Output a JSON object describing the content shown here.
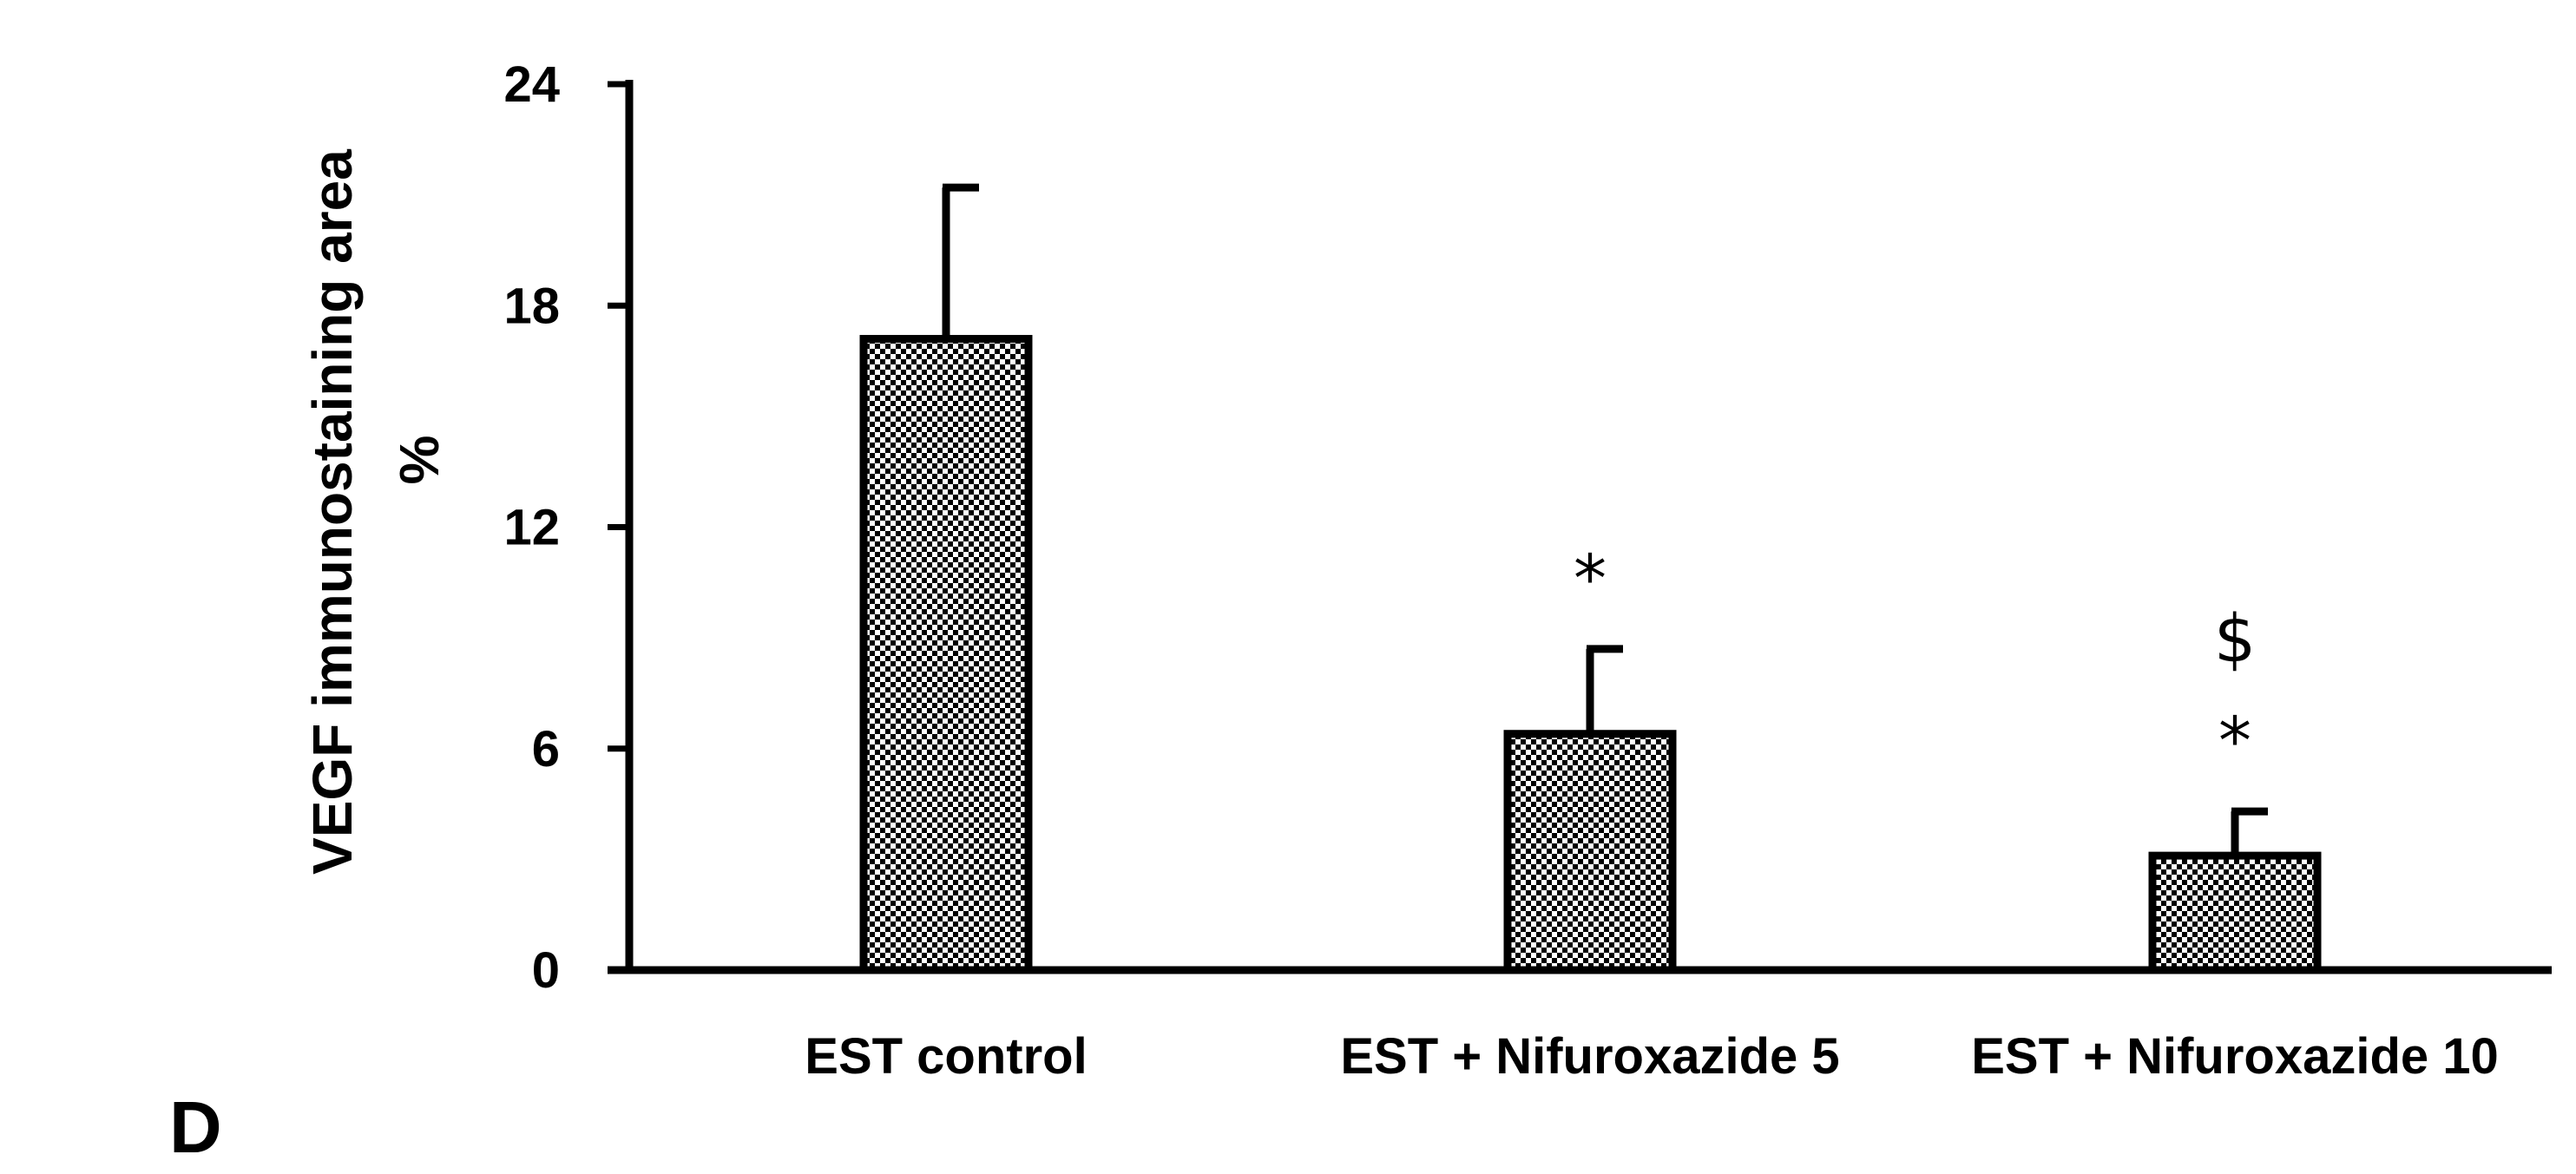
{
  "panel_label": "D",
  "colors": {
    "bar_fill_pattern": "checkerboard",
    "bar_stroke": "#000000",
    "axis": "#000000"
  },
  "chart_data": {
    "type": "bar",
    "ylabel_line1": "VEGF immunostaining area",
    "ylabel_line2": "%",
    "xlabel": "",
    "ylim": [
      0,
      24
    ],
    "yticks": [
      "0",
      "6",
      "12",
      "18",
      "24"
    ],
    "grid": false,
    "legend": "none",
    "categories": [
      "EST control",
      "EST + Nifuroxazide 5",
      "EST + Nifuroxazide 10"
    ],
    "values": [
      17.1,
      6.4,
      3.1
    ],
    "errors": [
      4.1,
      2.3,
      1.2
    ],
    "annotations": [
      [],
      [
        "*"
      ],
      [
        "$",
        "*"
      ]
    ]
  }
}
